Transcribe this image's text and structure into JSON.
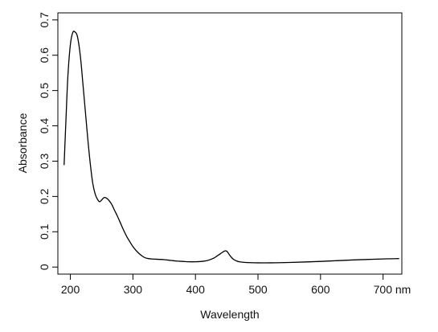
{
  "chart_data": {
    "type": "line",
    "title": "",
    "xlabel": "Wavelength",
    "ylabel": "Absorbance",
    "xlim": [
      180,
      730
    ],
    "ylim": [
      -0.02,
      0.72
    ],
    "x_ticks": [
      200,
      300,
      400,
      500,
      600,
      700
    ],
    "x_tick_labels": [
      "200",
      "300",
      "400",
      "500",
      "600",
      "700 nm"
    ],
    "y_ticks": [
      0,
      0.1,
      0.2,
      0.3,
      0.4,
      0.5,
      0.6,
      0.7
    ],
    "y_tick_labels": [
      "0",
      "0.1",
      "0.2",
      "0.3",
      "0.4",
      "0.5",
      "0.6",
      "0.7"
    ],
    "grid": false,
    "series": [
      {
        "color": "#000000",
        "x": [
          190,
          193,
          196,
          200,
          204,
          208,
          211,
          214,
          217,
          220,
          224,
          228,
          232,
          236,
          240,
          244,
          247,
          250,
          254,
          258,
          262,
          266,
          270,
          275,
          280,
          285,
          290,
          295,
          300,
          305,
          310,
          315,
          320,
          325,
          330,
          340,
          350,
          360,
          370,
          380,
          390,
          400,
          410,
          420,
          430,
          435,
          440,
          445,
          448,
          450,
          452,
          455,
          460,
          465,
          470,
          480,
          500,
          520,
          550,
          600,
          650,
          700,
          725
        ],
        "y": [
          0.29,
          0.42,
          0.54,
          0.63,
          0.665,
          0.665,
          0.655,
          0.625,
          0.58,
          0.52,
          0.44,
          0.36,
          0.29,
          0.235,
          0.205,
          0.19,
          0.185,
          0.19,
          0.197,
          0.195,
          0.188,
          0.178,
          0.163,
          0.145,
          0.125,
          0.105,
          0.087,
          0.072,
          0.058,
          0.047,
          0.038,
          0.031,
          0.026,
          0.024,
          0.023,
          0.022,
          0.021,
          0.019,
          0.017,
          0.016,
          0.015,
          0.015,
          0.016,
          0.019,
          0.026,
          0.032,
          0.038,
          0.044,
          0.046,
          0.045,
          0.041,
          0.033,
          0.023,
          0.018,
          0.015,
          0.013,
          0.012,
          0.012,
          0.013,
          0.016,
          0.02,
          0.023,
          0.024
        ]
      }
    ]
  }
}
